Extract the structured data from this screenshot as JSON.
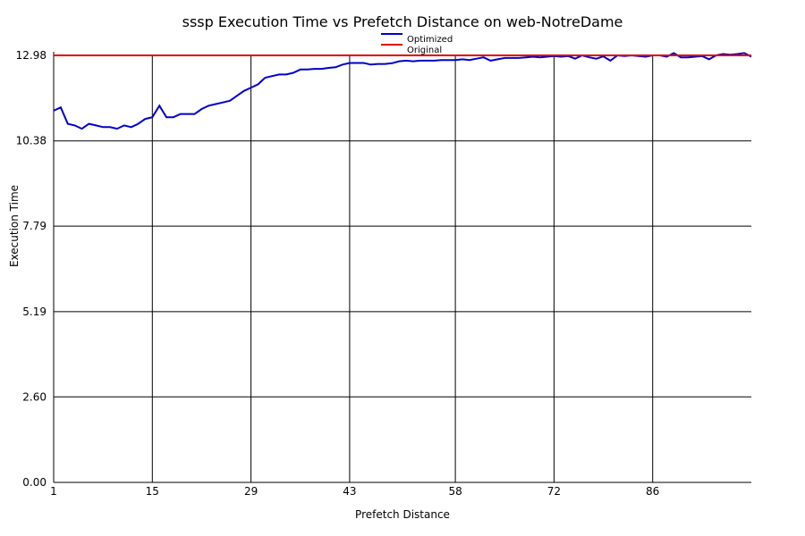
{
  "chart_data": {
    "type": "line",
    "title": "sssp Execution Time vs Prefetch Distance on web-NotreDame",
    "xlabel": "Prefetch Distance",
    "ylabel": "Execution Time",
    "xlim": [
      1,
      100
    ],
    "ylim": [
      0,
      12.98
    ],
    "x_ticks": [
      1,
      15,
      29,
      43,
      58,
      72,
      86
    ],
    "x_tick_labels": [
      "1",
      "15",
      "29",
      "43",
      "58",
      "72",
      "86"
    ],
    "y_ticks": [
      0,
      2.6,
      5.19,
      7.79,
      10.38,
      12.98
    ],
    "y_tick_labels": [
      "0.00",
      "2.60",
      "5.19",
      "7.79",
      "10.38",
      "12.98"
    ],
    "grid": true,
    "legend_position": "top-center",
    "series": [
      {
        "name": "Optimized",
        "color": "#0000cc",
        "values": [
          11.3,
          11.4,
          10.9,
          10.85,
          10.75,
          10.9,
          10.85,
          10.8,
          10.8,
          10.75,
          10.85,
          10.8,
          10.9,
          11.05,
          11.1,
          11.45,
          11.1,
          11.1,
          11.2,
          11.2,
          11.2,
          11.35,
          11.45,
          11.5,
          11.55,
          11.6,
          11.75,
          11.9,
          12.0,
          12.1,
          12.3,
          12.35,
          12.4,
          12.4,
          12.45,
          12.55,
          12.55,
          12.57,
          12.57,
          12.6,
          12.62,
          12.7,
          12.75,
          12.75,
          12.75,
          12.7,
          12.72,
          12.72,
          12.74,
          12.8,
          12.82,
          12.8,
          12.82,
          12.82,
          12.82,
          12.84,
          12.84,
          12.84,
          12.86,
          12.84,
          12.88,
          12.92,
          12.82,
          12.86,
          12.9,
          12.9,
          12.9,
          12.92,
          12.94,
          12.92,
          12.94,
          12.96,
          12.94,
          12.96,
          12.88,
          12.98,
          12.92,
          12.88,
          12.95,
          12.82,
          12.98,
          12.96,
          12.98,
          12.96,
          12.94,
          12.98,
          12.98,
          12.94,
          13.05,
          12.92,
          12.92,
          12.94,
          12.96,
          12.86,
          12.98,
          13.02,
          13.0,
          13.02,
          13.05,
          12.94
        ]
      },
      {
        "name": "Original",
        "color": "#dd0000",
        "values": [
          12.98,
          12.98
        ]
      }
    ]
  }
}
